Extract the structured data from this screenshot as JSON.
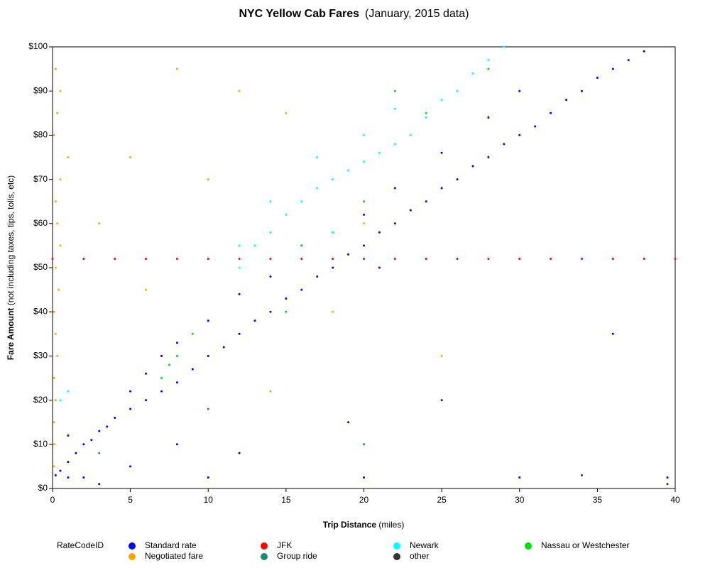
{
  "chart_data": {
    "type": "scatter",
    "title": "NYC Yellow Cab Fares",
    "subtitle": "(January, 2015 data)",
    "x_label": "Trip Distance",
    "x_label_unit": "(miles)",
    "y_label": "Fare Amount",
    "y_label_note": "(not including taxes, tips, tolls, etc)",
    "legend_title": "RateCodeID",
    "xlim": [
      0,
      40
    ],
    "xticks": [
      0,
      5,
      10,
      15,
      20,
      25,
      30,
      35,
      40
    ],
    "ylim": [
      0,
      100
    ],
    "yticks": [
      {
        "value": 0,
        "label": "$0"
      },
      {
        "value": 10,
        "label": "$10"
      },
      {
        "value": 20,
        "label": "$20"
      },
      {
        "value": 30,
        "label": "$30"
      },
      {
        "value": 40,
        "label": "$40"
      },
      {
        "value": 50,
        "label": "$50"
      },
      {
        "value": 60,
        "label": "$60"
      },
      {
        "value": 70,
        "label": "$70"
      },
      {
        "value": 80,
        "label": "$80"
      },
      {
        "value": 90,
        "label": "$90"
      },
      {
        "value": 100,
        "label": "$100"
      }
    ],
    "series": [
      {
        "name": "Standard rate",
        "color": "#0000ff",
        "x": [
          0.5,
          1,
          1.5,
          2,
          2.5,
          3,
          3.5,
          4,
          5,
          5,
          6,
          6,
          7,
          7,
          8,
          8,
          9,
          10,
          10,
          11,
          12,
          12,
          13,
          14,
          14,
          15,
          16,
          16,
          17,
          18,
          18,
          19,
          20,
          20,
          21,
          22,
          22,
          23,
          24,
          25,
          25,
          26,
          27,
          28,
          28,
          29,
          30,
          30,
          31,
          32,
          33,
          34,
          35,
          36,
          37,
          38,
          2,
          10,
          20,
          30,
          39.5,
          1,
          5,
          8,
          3,
          12,
          19,
          25,
          36,
          21,
          1,
          0.2
        ],
        "values": [
          4,
          6,
          8,
          10,
          11,
          13,
          14,
          16,
          18,
          22,
          20,
          26,
          22,
          30,
          24,
          33,
          27,
          30,
          38,
          32,
          35,
          44,
          38,
          40,
          48,
          43,
          45,
          55,
          48,
          50,
          58,
          53,
          55,
          62,
          58,
          60,
          68,
          63,
          65,
          68,
          76,
          70,
          73,
          75,
          84,
          78,
          80,
          90,
          82,
          85,
          88,
          90,
          93,
          95,
          97,
          99,
          2.5,
          2.5,
          2.5,
          2.5,
          2.5,
          2.5,
          5,
          10,
          1,
          8,
          15,
          20,
          35,
          50,
          12,
          3
        ]
      },
      {
        "name": "JFK",
        "color": "#ff0000",
        "x": [
          0,
          2,
          4,
          6,
          8,
          10,
          12,
          14,
          16,
          18,
          20,
          22,
          24,
          26,
          28,
          30,
          32,
          34,
          36,
          38,
          40
        ],
        "values": [
          52,
          52,
          52,
          52,
          52,
          52,
          52,
          52,
          52,
          52,
          52,
          52,
          52,
          52,
          52,
          52,
          52,
          52,
          52,
          52,
          52
        ]
      },
      {
        "name": "Newark",
        "color": "#00ffff",
        "x": [
          0.5,
          1,
          12,
          13,
          14,
          15,
          16,
          17,
          18,
          19,
          20,
          21,
          22,
          23,
          24,
          25,
          26,
          27,
          28,
          29,
          17,
          20,
          14,
          22,
          18,
          12
        ],
        "values": [
          20,
          22,
          50,
          55,
          58,
          62,
          65,
          68,
          70,
          72,
          74,
          76,
          78,
          80,
          84,
          88,
          90,
          94,
          97,
          100,
          75,
          80,
          65,
          86,
          58,
          55
        ]
      },
      {
        "name": "Nassau or Westchester",
        "color": "#00e000",
        "x": [
          7,
          7.5,
          8,
          9,
          15,
          16,
          20,
          24,
          28,
          22
        ],
        "values": [
          25,
          28,
          30,
          35,
          40,
          55,
          65,
          85,
          95,
          90
        ]
      },
      {
        "name": "Negotiated fare",
        "color": "#ffa500",
        "x": [
          0.2,
          0.5,
          0.3,
          0.1,
          1,
          0.5,
          0.2,
          0.3,
          0.5,
          0.2,
          0.4,
          0.1,
          0.2,
          0.3,
          0.1,
          0.2,
          0.1,
          0.1,
          0.1,
          5,
          10,
          3,
          8,
          15,
          12,
          6,
          20,
          18,
          25,
          14
        ],
        "values": [
          95,
          90,
          85,
          80,
          75,
          70,
          65,
          60,
          55,
          50,
          45,
          40,
          35,
          30,
          25,
          20,
          15,
          10,
          5,
          75,
          70,
          60,
          95,
          85,
          90,
          45,
          60,
          40,
          30,
          22
        ]
      },
      {
        "name": "Group ride",
        "color": "#1a8a6e",
        "x": [
          3,
          10,
          20
        ],
        "values": [
          8,
          18,
          10
        ]
      },
      {
        "name": "other",
        "color": "#333333",
        "x": [
          39.5,
          34
        ],
        "values": [
          1,
          3
        ]
      }
    ]
  }
}
